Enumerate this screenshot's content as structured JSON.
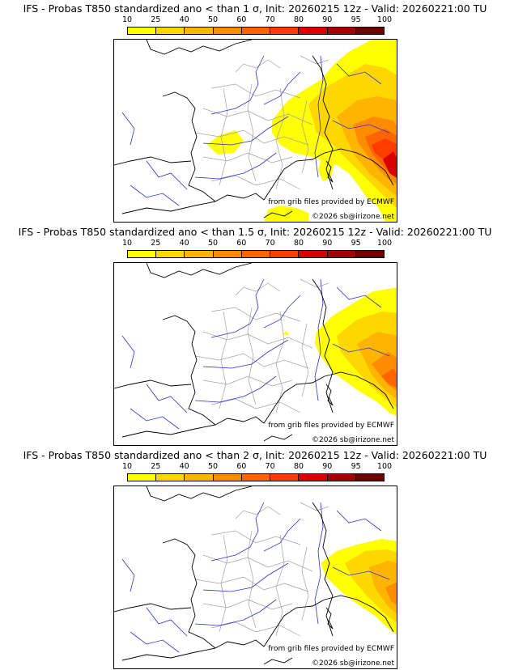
{
  "colors": {
    "scale": [
      "#ffff00",
      "#ffd700",
      "#ffb400",
      "#ff8c00",
      "#ff6400",
      "#ff3c00",
      "#d80000",
      "#a00000",
      "#700000"
    ],
    "coast": "#000000",
    "rivers": "#3030c8",
    "borders": "#a0a0a0"
  },
  "scale_labels": [
    "10",
    "25",
    "40",
    "50",
    "60",
    "70",
    "80",
    "90",
    "95",
    "100"
  ],
  "panels": [
    {
      "title": "IFS - Probas T850  standardized ano < than 1 σ, Init: 20260215 12z - Valid: 20260221:00 TU",
      "credit_source": "from grib files provided by ECMWF",
      "credit_copyright": "©2026 sb@irizone.net"
    },
    {
      "title": "IFS - Probas T850  standardized ano < than 1.5 σ, Init: 20260215 12z - Valid: 20260221:00 TU",
      "credit_source": "from grib files provided by ECMWF",
      "credit_copyright": "©2026 sb@irizone.net"
    },
    {
      "title": "IFS - Probas T850  standardized ano < than 2 σ, Init: 20260215 12z - Valid: 20260221:00 TU",
      "credit_source": "from grib files provided by ECMWF",
      "credit_copyright": "©2026 sb@irizone.net"
    }
  ]
}
